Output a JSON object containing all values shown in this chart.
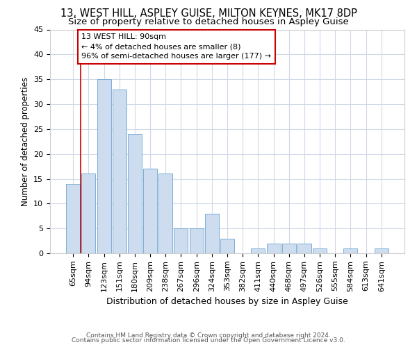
{
  "title": "13, WEST HILL, ASPLEY GUISE, MILTON KEYNES, MK17 8DP",
  "subtitle": "Size of property relative to detached houses in Aspley Guise",
  "xlabel": "Distribution of detached houses by size in Aspley Guise",
  "ylabel": "Number of detached properties",
  "categories": [
    "65sqm",
    "94sqm",
    "123sqm",
    "151sqm",
    "180sqm",
    "209sqm",
    "238sqm",
    "267sqm",
    "296sqm",
    "324sqm",
    "353sqm",
    "382sqm",
    "411sqm",
    "440sqm",
    "468sqm",
    "497sqm",
    "526sqm",
    "555sqm",
    "584sqm",
    "613sqm",
    "641sqm"
  ],
  "values": [
    14,
    16,
    35,
    33,
    24,
    17,
    16,
    5,
    5,
    8,
    3,
    0,
    1,
    2,
    2,
    2,
    1,
    0,
    1,
    0,
    1
  ],
  "bar_color": "#cddcee",
  "bar_edge_color": "#7bafd4",
  "annotation_box_text": "13 WEST HILL: 90sqm\n← 4% of detached houses are smaller (8)\n96% of semi-detached houses are larger (177) →",
  "annotation_box_color": "#ffffff",
  "annotation_box_edge_color": "#cc0000",
  "ylim": [
    0,
    45
  ],
  "yticks": [
    0,
    5,
    10,
    15,
    20,
    25,
    30,
    35,
    40,
    45
  ],
  "footer1": "Contains HM Land Registry data © Crown copyright and database right 2024.",
  "footer2": "Contains public sector information licensed under the Open Government Licence v3.0.",
  "background_color": "#ffffff",
  "plot_bg_color": "#ffffff",
  "grid_color": "#d0d8e8",
  "title_fontsize": 10.5,
  "subtitle_fontsize": 9.5,
  "axis_fontsize": 8,
  "ylabel_fontsize": 8.5,
  "xlabel_fontsize": 9,
  "bar_width": 0.9,
  "red_line_color": "#cc0000",
  "red_line_x": 0.5,
  "ann_fontsize": 8,
  "footer_fontsize": 6.5,
  "footer_color": "#555555"
}
